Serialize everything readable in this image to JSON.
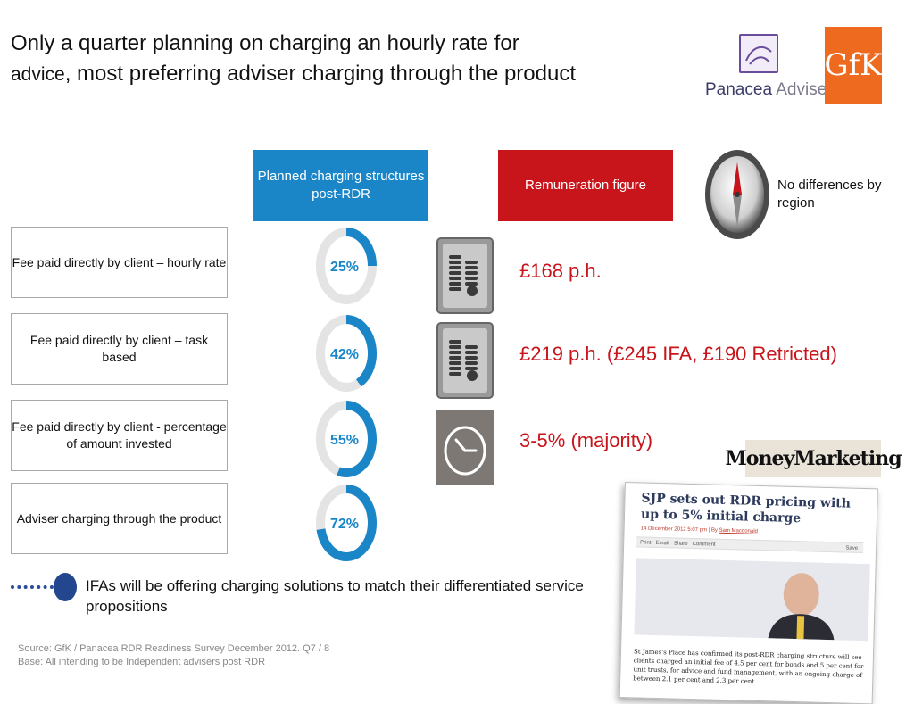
{
  "title": {
    "line1": "Only a quarter planning on charging an hourly rate for",
    "line2_small": "advice",
    "line2_rest": ", most preferring adviser charging through the product"
  },
  "logos": {
    "panacea_main": "Panacea",
    "panacea_sub": "Adviser",
    "gfk": "GfK",
    "moneymarketing": "MoneyMarketing"
  },
  "headers": {
    "planned": "Planned charging structures post-RDR",
    "remuneration": "Remuneration figure"
  },
  "region_note": "No differences by  region",
  "chart_data": {
    "type": "donut",
    "categories": [
      "Fee paid directly by client – hourly rate",
      "Fee paid directly by client – task based",
      "Fee paid directly by client - percentage of amount invested",
      "Adviser charging through the product"
    ],
    "values": [
      25,
      42,
      55,
      72
    ],
    "value_labels": [
      "25%",
      "42%",
      "55%",
      "72%"
    ],
    "unit": "%",
    "ylim": [
      0,
      100
    ],
    "series_color": "#1a86c8",
    "track_color": "#e4e4e4",
    "remuneration": [
      "£168 p.h.",
      "£219 p.h. (£245 IFA, £190 Retricted)",
      "3-5% (majority)",
      ""
    ],
    "icons": [
      "coins-icon",
      "coins-icon",
      "clock-icon",
      ""
    ]
  },
  "article": {
    "headline": "SJP sets out RDR pricing with up to 5% initial charge",
    "meta_date": "14 December 2012 5:07 pm | By",
    "meta_author": "Sam Macdonald",
    "toolbar": [
      "Print",
      "Email",
      "Share",
      "Comment",
      "Save"
    ],
    "body": "St James's Place has confirmed its post-RDR charging structure will see clients charged an initial fee of 4.5 per cent for bonds and 5 per cent for unit trusts, for advice and fund management, with an ongoing charge of between 2.1 per cent and 2.3 per cent."
  },
  "takeaway": "IFAs will be offering charging solutions to match their differentiated service propositions",
  "source": {
    "line1": "Source: GfK / Panacea RDR Readiness Survey December 2012. Q7 / 8",
    "line2": "Base: All intending to be Independent advisers post RDR"
  },
  "colors": {
    "accent_blue": "#1a86c8",
    "accent_red": "#c8141b",
    "navy": "#23468f"
  }
}
